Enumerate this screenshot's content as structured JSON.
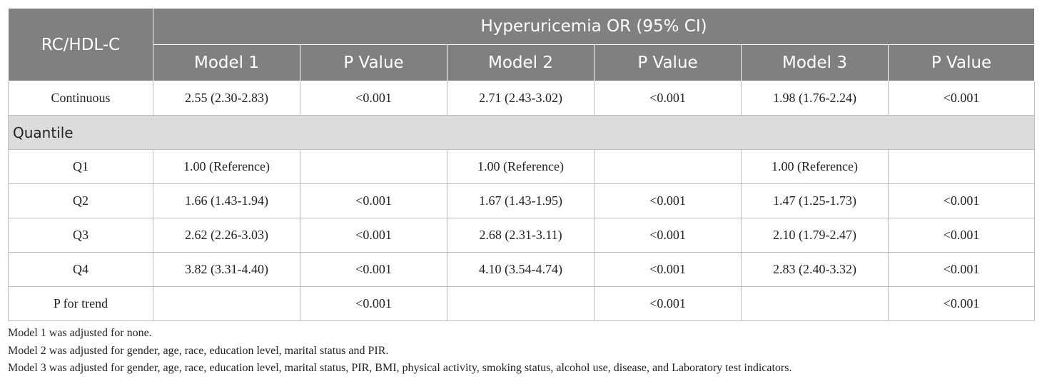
{
  "table": {
    "row_header": "RC/HDL-C",
    "group_header": "Hyperuricemia OR (95% CI)",
    "columns": [
      "Model 1",
      "P Value",
      "Model 2",
      "P Value",
      "Model 3",
      "P Value"
    ],
    "rows": [
      {
        "label": "Continuous",
        "cells": [
          "2.55 (2.30-2.83)",
          "<0.001",
          "2.71 (2.43-3.02)",
          "<0.001",
          "1.98 (1.76-2.24)",
          "<0.001"
        ]
      }
    ],
    "section_label": "Quantile",
    "section_rows": [
      {
        "label": "Q1",
        "cells": [
          "1.00 (Reference)",
          "",
          "1.00 (Reference)",
          "",
          "1.00 (Reference)",
          ""
        ]
      },
      {
        "label": "Q2",
        "cells": [
          "1.66 (1.43-1.94)",
          "<0.001",
          "1.67 (1.43-1.95)",
          "<0.001",
          "1.47 (1.25-1.73)",
          "<0.001"
        ]
      },
      {
        "label": "Q3",
        "cells": [
          "2.62 (2.26-3.03)",
          "<0.001",
          "2.68 (2.31-3.11)",
          "<0.001",
          "2.10 (1.79-2.47)",
          "<0.001"
        ]
      },
      {
        "label": "Q4",
        "cells": [
          "3.82 (3.31-4.40)",
          "<0.001",
          "4.10 (3.54-4.74)",
          "<0.001",
          "2.83 (2.40-3.32)",
          "<0.001"
        ]
      },
      {
        "label": "P for trend",
        "cells": [
          "",
          "<0.001",
          "",
          "<0.001",
          "",
          "<0.001"
        ]
      }
    ]
  },
  "notes": [
    "Model 1 was adjusted for none.",
    "Model 2 was adjusted for gender, age, race, education level, marital status and PIR.",
    "Model 3 was adjusted for gender, age, race, education level, marital status, PIR, BMI, physical activity, smoking status, alcohol use, disease, and Laboratory test indicators."
  ]
}
